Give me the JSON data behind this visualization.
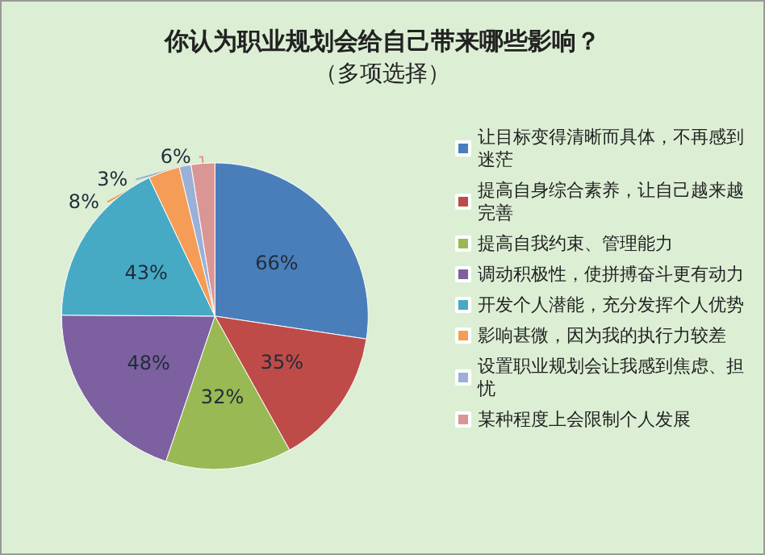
{
  "chart_data": {
    "type": "pie",
    "title": "你认为职业规划会给自己带来哪些影响？",
    "subtitle": "（多项选择）",
    "categories": [
      "让目标变得清晰而具体，不再感到迷茫",
      "提高自身综合素养，让自己越来越完善",
      "提高自我约束、管理能力",
      "调动积极性，使拼搏奋斗更有动力",
      "开发个人潜能，充分发挥个人优势",
      "影响甚微，因为我的执行力较差",
      "设置职业规划会让我感到焦虑、担忧",
      "某种程度上会限制个人发展"
    ],
    "values": [
      66,
      35,
      32,
      48,
      43,
      8,
      3,
      6
    ],
    "colors": [
      "#4a7ebb",
      "#be4b48",
      "#98b954",
      "#7d60a0",
      "#46aac5",
      "#f59d56",
      "#9bb0d8",
      "#d99694"
    ],
    "value_labels": [
      "66%",
      "35%",
      "32%",
      "48%",
      "43%",
      "8%",
      "3%",
      "6%"
    ],
    "legend": "right"
  }
}
